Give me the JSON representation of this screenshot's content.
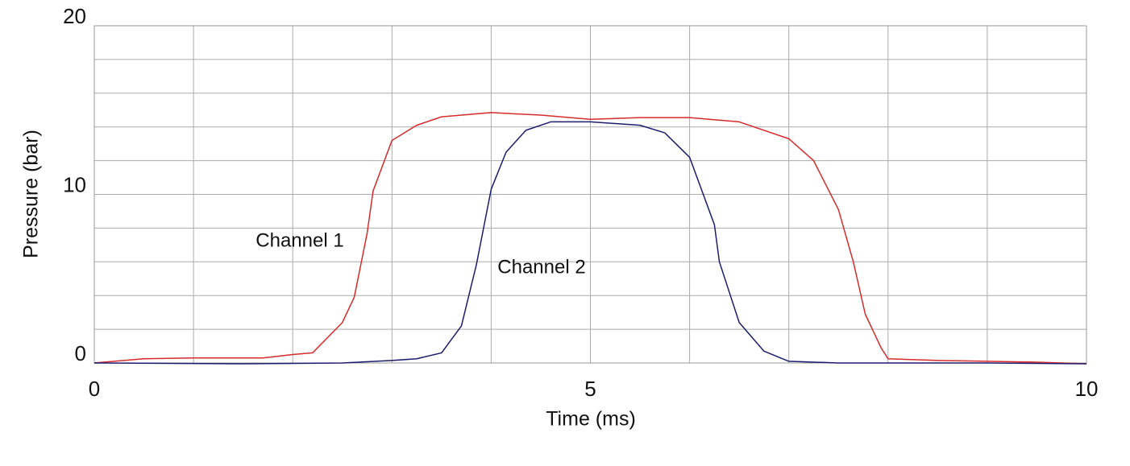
{
  "chart_data": {
    "type": "line",
    "x_label": "Time (ms)",
    "y_label": "Pressure (bar)",
    "annotations": [
      "Channel 1",
      "Channel 2"
    ],
    "xlim": [
      0,
      10
    ],
    "ylim": [
      0,
      20
    ],
    "xticks": [
      0,
      5,
      10
    ],
    "yticks": [
      0,
      10,
      20
    ],
    "xgrid": [
      1,
      2,
      3,
      4,
      5,
      6,
      7,
      8,
      9
    ],
    "ygrid": [
      2,
      4,
      6,
      8,
      10,
      12,
      14,
      16,
      18
    ],
    "grid": true,
    "series": [
      {
        "name": "Channel 1",
        "color": "#d62b2b",
        "x": [
          0,
          0.5,
          1.0,
          1.7,
          2.0,
          2.2,
          2.5,
          2.62,
          2.75,
          2.81,
          3.0,
          3.25,
          3.5,
          4.0,
          4.5,
          5.0,
          5.5,
          6.0,
          6.5,
          7.0,
          7.25,
          7.5,
          7.65,
          7.77,
          7.93,
          8.0,
          8.5,
          9.0,
          9.5,
          10
        ],
        "values": [
          0,
          0.25,
          0.3,
          0.3,
          0.5,
          0.6,
          2.4,
          3.9,
          7.7,
          10.2,
          13.2,
          14.1,
          14.6,
          14.85,
          14.7,
          14.45,
          14.55,
          14.55,
          14.3,
          13.3,
          12.0,
          9.1,
          6.0,
          2.9,
          0.9,
          0.25,
          0.15,
          0.1,
          0.05,
          -0.05
        ]
      },
      {
        "name": "Channel 2",
        "color": "#1c1c6e",
        "x": [
          0,
          1.5,
          2.5,
          3.0,
          3.25,
          3.5,
          3.7,
          3.85,
          4.0,
          4.15,
          4.35,
          4.6,
          5.0,
          5.5,
          5.75,
          6.0,
          6.25,
          6.3,
          6.5,
          6.75,
          7.0,
          7.5,
          8.0,
          9.0,
          10
        ],
        "values": [
          0,
          -0.05,
          0,
          0.15,
          0.25,
          0.6,
          2.2,
          5.8,
          10.3,
          12.5,
          13.8,
          14.3,
          14.3,
          14.1,
          13.65,
          12.2,
          8.2,
          6.0,
          2.4,
          0.7,
          0.1,
          0,
          0,
          0,
          -0.05
        ]
      }
    ]
  }
}
